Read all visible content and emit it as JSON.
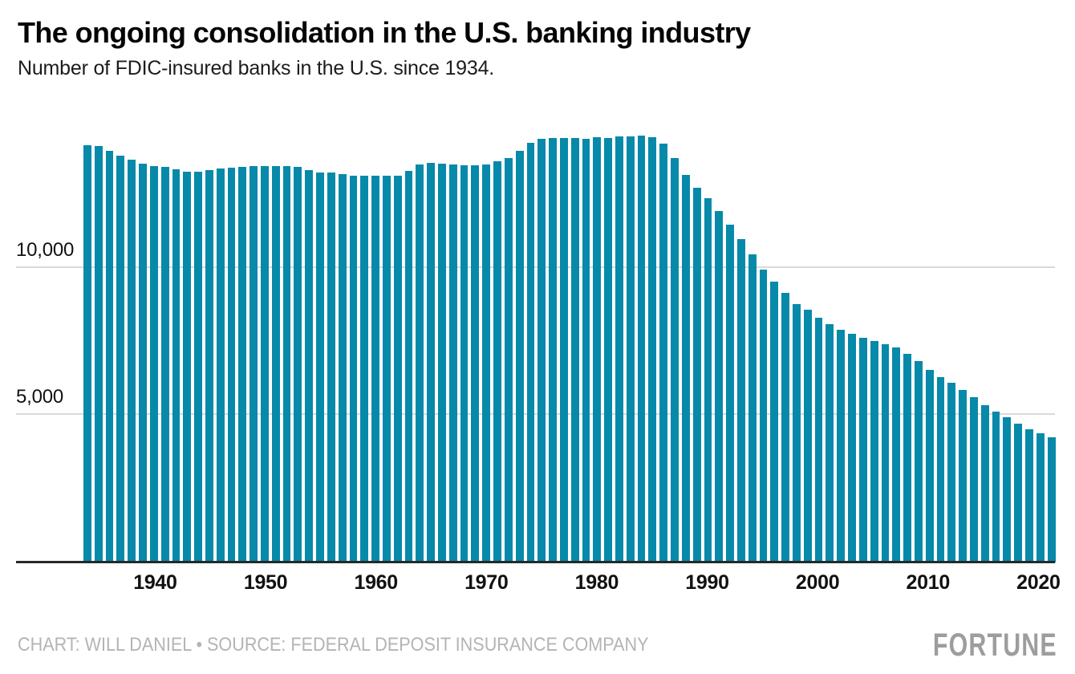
{
  "header": {
    "title": "The ongoing consolidation in the U.S. banking industry",
    "subtitle": "Number of FDIC-insured banks in the U.S. since 1934."
  },
  "footer": {
    "credit": "CHART: WILL DANIEL • SOURCE: FEDERAL DEPOSIT INSURANCE COMPANY",
    "brand": "FORTUNE"
  },
  "chart_data": {
    "type": "bar",
    "title": "The ongoing consolidation in the U.S. banking industry",
    "subtitle": "Number of FDIC-insured banks in the U.S. since 1934.",
    "xlabel": "",
    "ylabel": "",
    "bar_color": "#0789A9",
    "grid": "horizontal",
    "gridline_color": "#dadada",
    "axis_line_color": "#26282a",
    "legend": "none",
    "ylim": [
      0,
      14700
    ],
    "x_ticks": [
      1940,
      1950,
      1960,
      1970,
      1980,
      1990,
      2000,
      2010,
      2020
    ],
    "y_ticks": [
      {
        "value": 5000,
        "label": "5,000"
      },
      {
        "value": 10000,
        "label": "10,000"
      }
    ],
    "x": [
      1934,
      1935,
      1936,
      1937,
      1938,
      1939,
      1940,
      1941,
      1942,
      1943,
      1944,
      1945,
      1946,
      1947,
      1948,
      1949,
      1950,
      1951,
      1952,
      1953,
      1954,
      1955,
      1956,
      1957,
      1958,
      1959,
      1960,
      1961,
      1962,
      1963,
      1964,
      1965,
      1966,
      1967,
      1968,
      1969,
      1970,
      1971,
      1972,
      1973,
      1974,
      1975,
      1976,
      1977,
      1978,
      1979,
      1980,
      1981,
      1982,
      1983,
      1984,
      1985,
      1986,
      1987,
      1988,
      1989,
      1990,
      1991,
      1992,
      1993,
      1994,
      1995,
      1996,
      1997,
      1998,
      1999,
      2000,
      2001,
      2002,
      2003,
      2004,
      2005,
      2006,
      2007,
      2008,
      2009,
      2010,
      2011,
      2012,
      2013,
      2014,
      2015,
      2016,
      2017,
      2018,
      2019,
      2020,
      2021
    ],
    "values": [
      14146,
      14125,
      13973,
      13797,
      13661,
      13538,
      13442,
      13426,
      13343,
      13268,
      13263,
      13302,
      13359,
      13403,
      13419,
      13436,
      13446,
      13455,
      13439,
      13432,
      13323,
      13237,
      13218,
      13165,
      13124,
      13114,
      13126,
      13115,
      13124,
      13291,
      13493,
      13544,
      13538,
      13514,
      13487,
      13473,
      13511,
      13612,
      13733,
      13976,
      14230,
      14384,
      14410,
      14411,
      14391,
      14364,
      14434,
      14414,
      14451,
      14469,
      14496,
      14417,
      14210,
      13723,
      13137,
      12715,
      12347,
      11927,
      11467,
      10959,
      10452,
      9941,
      9528,
      9143,
      8774,
      8580,
      8315,
      8080,
      7888,
      7770,
      7631,
      7526,
      7402,
      7284,
      7087,
      6840,
      6530,
      6291,
      6096,
      5847,
      5607,
      5340,
      5112,
      4918,
      4715,
      4519,
      4377,
      4236
    ]
  }
}
